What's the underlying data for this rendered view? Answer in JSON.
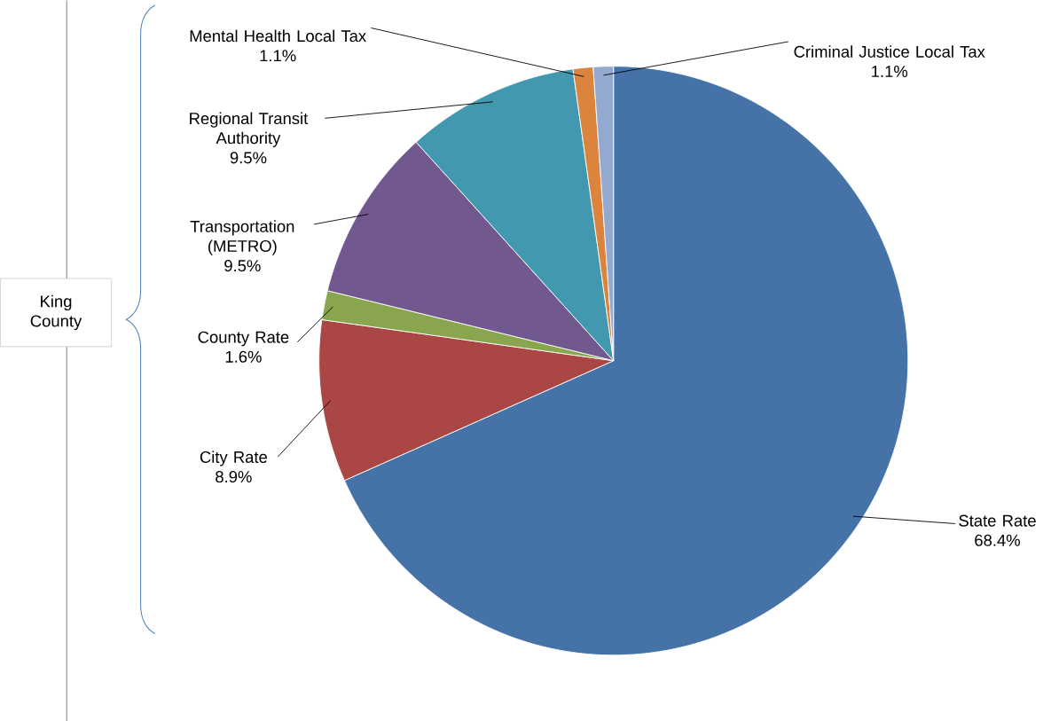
{
  "chart_data": {
    "type": "pie",
    "categories": [
      "State Rate",
      "City Rate",
      "County Rate",
      "Transportation (METRO)",
      "Regional Transit Authority",
      "Mental Health Local Tax",
      "Criminal Justice Local Tax"
    ],
    "values": [
      68.4,
      8.9,
      1.6,
      9.5,
      9.5,
      1.1,
      1.1
    ],
    "value_labels": [
      "68.4%",
      "8.9%",
      "1.6%",
      "9.5%",
      "9.5%",
      "1.1%",
      "1.1%"
    ],
    "colors": [
      "#4572a7",
      "#aa4643",
      "#89a54e",
      "#71588f",
      "#4198af",
      "#db843d",
      "#93a9cf"
    ],
    "annotations": [
      "King County"
    ]
  }
}
